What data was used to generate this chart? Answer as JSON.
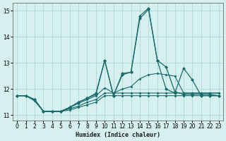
{
  "xlabel": "Humidex (Indice chaleur)",
  "background_color": "#d6f0f0",
  "grid_color": "#b0d8d8",
  "line_color": "#1a6b6b",
  "xlim": [
    -0.5,
    23.5
  ],
  "ylim": [
    10.8,
    15.3
  ],
  "yticks": [
    11,
    12,
    13,
    14,
    15
  ],
  "xticks": [
    0,
    1,
    2,
    3,
    4,
    5,
    6,
    7,
    8,
    9,
    10,
    11,
    12,
    13,
    14,
    15,
    16,
    17,
    18,
    19,
    20,
    21,
    22,
    23
  ],
  "lines": [
    [
      11.75,
      11.75,
      11.55,
      11.15,
      11.15,
      11.15,
      11.2,
      11.3,
      11.4,
      11.5,
      11.75,
      11.75,
      11.75,
      11.75,
      11.75,
      11.75,
      11.75,
      11.75,
      11.75,
      11.75,
      11.75,
      11.75,
      11.75,
      11.75
    ],
    [
      11.75,
      11.75,
      11.6,
      11.15,
      11.15,
      11.15,
      11.25,
      11.35,
      11.5,
      11.6,
      11.85,
      11.85,
      11.85,
      11.85,
      11.85,
      11.85,
      11.85,
      11.85,
      11.85,
      11.85,
      11.85,
      11.85,
      11.85,
      11.85
    ],
    [
      11.75,
      11.75,
      11.6,
      11.15,
      11.15,
      11.15,
      11.3,
      11.45,
      11.6,
      11.75,
      12.05,
      11.85,
      12.0,
      12.1,
      12.4,
      12.55,
      12.6,
      12.55,
      12.5,
      11.85,
      11.85,
      11.85,
      11.85,
      11.85
    ],
    [
      11.75,
      11.75,
      11.6,
      11.15,
      11.15,
      11.15,
      11.3,
      11.5,
      11.65,
      11.8,
      13.1,
      11.75,
      12.55,
      12.65,
      14.7,
      15.05,
      13.1,
      12.85,
      11.9,
      11.8,
      11.8,
      11.8,
      11.8,
      11.75
    ],
    [
      11.75,
      11.75,
      11.6,
      11.15,
      11.15,
      11.15,
      11.3,
      11.5,
      11.65,
      11.85,
      13.1,
      11.75,
      12.6,
      12.65,
      14.8,
      15.1,
      13.1,
      12.0,
      11.85,
      12.8,
      12.35,
      11.75,
      11.75,
      11.75
    ]
  ]
}
